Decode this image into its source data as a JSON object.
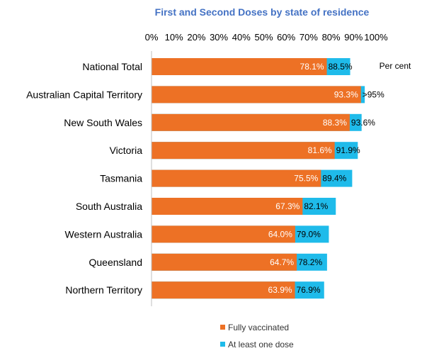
{
  "colors": {
    "fully_vaccinated": "#ED7125",
    "at_least_one_dose": "#1FBBEA",
    "title": "#4472C4"
  },
  "chart_data": {
    "type": "bar",
    "orientation": "horizontal",
    "title": "First and Second Doses by state of residence",
    "unit_label": "Per cent",
    "xlim": [
      0,
      100
    ],
    "x_ticks": [
      "0%",
      "10%",
      "20%",
      "30%",
      "40%",
      "50%",
      "60%",
      "70%",
      "80%",
      "90%",
      "100%"
    ],
    "categories": [
      "National Total",
      "Australian Capital Territory",
      "New South Wales",
      "Victoria",
      "Tasmania",
      "South Australia",
      "Western Australia",
      "Queensland",
      "Northern Territory"
    ],
    "series": [
      {
        "name": "Fully vaccinated",
        "values": [
          78.1,
          93.3,
          88.3,
          81.6,
          75.5,
          67.3,
          64.0,
          64.7,
          63.9
        ],
        "labels": [
          "78.1%",
          "93.3%",
          "88.3%",
          "81.6%",
          "75.5%",
          "67.3%",
          "64.0%",
          "64.7%",
          "63.9%"
        ]
      },
      {
        "name": "At least one dose",
        "values": [
          88.5,
          95.0,
          93.6,
          91.9,
          89.4,
          82.1,
          79.0,
          78.2,
          76.9
        ],
        "labels": [
          "88.5%",
          ">95%",
          "93.6%",
          "91.9%",
          "89.4%",
          "82.1%",
          "79.0%",
          "78.2%",
          "76.9%"
        ]
      }
    ],
    "grid": false,
    "legend_position": "bottom"
  }
}
